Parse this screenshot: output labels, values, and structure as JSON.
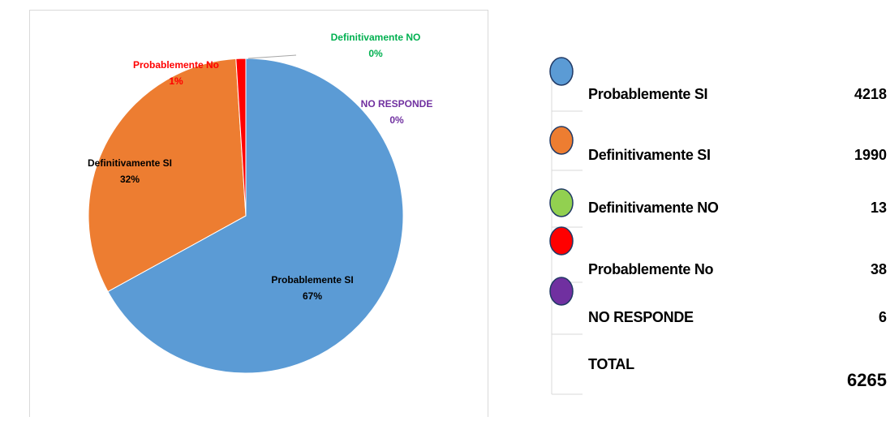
{
  "chart_data": {
    "type": "pie",
    "categories": [
      "Probablemente SI",
      "Definitivamente SI",
      "Probablemente No",
      "Definitivamente NO",
      "NO RESPONDE"
    ],
    "values": [
      67,
      32,
      1,
      0,
      0
    ],
    "value_labels": [
      "67%",
      "32%",
      "1%",
      "0%",
      "0%"
    ],
    "colors": [
      "#5b9bd5",
      "#ed7d31",
      "#ff0000",
      "#92d050",
      "#7030a0"
    ],
    "label_colors": [
      "#000000",
      "#000000",
      "#ff0000",
      "#00b050",
      "#7030a0"
    ]
  },
  "table": {
    "rows": [
      {
        "label": "Probablemente SI",
        "value": 4218,
        "color": "#5b9bd5"
      },
      {
        "label": "Definitivamente SI",
        "value": 1990,
        "color": "#ed7d31"
      },
      {
        "label": "Definitivamente NO",
        "value": 13,
        "color": "#92d050"
      },
      {
        "label": "Probablemente No",
        "value": 38,
        "color": "#ff0000"
      },
      {
        "label": "NO RESPONDE",
        "value": 6,
        "color": "#7030a0"
      },
      {
        "label": "TOTAL",
        "value": 6265
      }
    ]
  }
}
